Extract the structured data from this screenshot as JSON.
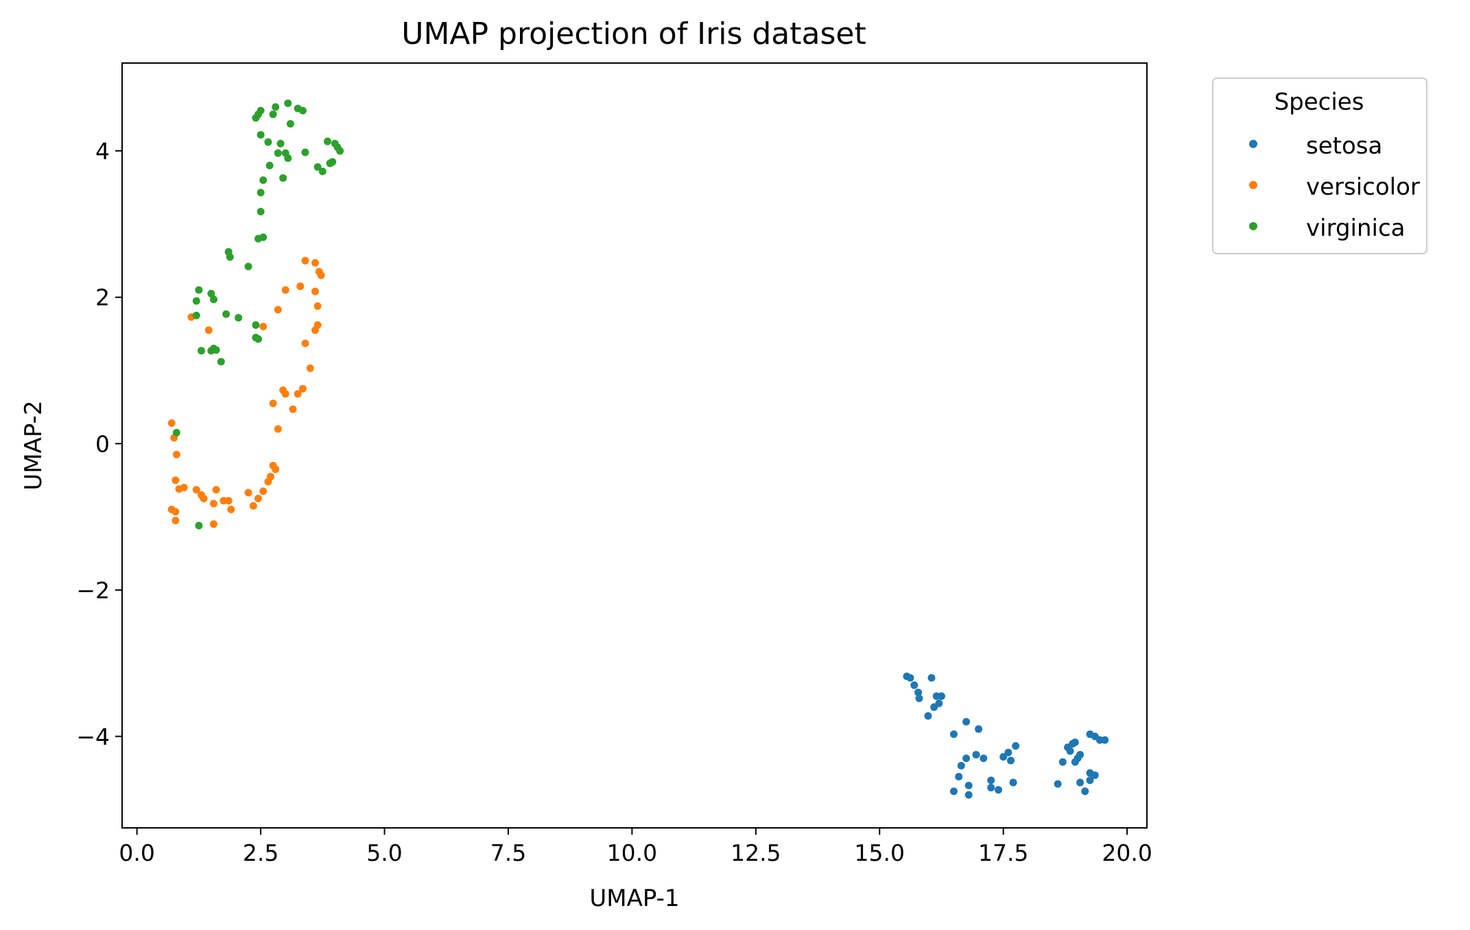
{
  "chart_data": {
    "type": "scatter",
    "title": "UMAP projection of Iris dataset",
    "xlabel": "UMAP-1",
    "ylabel": "UMAP-2",
    "xlim": [
      -0.3,
      20.4
    ],
    "ylim": [
      -5.25,
      5.2
    ],
    "xticks": [
      0.0,
      2.5,
      5.0,
      7.5,
      10.0,
      12.5,
      15.0,
      17.5,
      20.0
    ],
    "xtick_labels": [
      "0.0",
      "2.5",
      "5.0",
      "7.5",
      "10.0",
      "12.5",
      "15.0",
      "17.5",
      "20.0"
    ],
    "yticks": [
      -4,
      -2,
      0,
      2,
      4
    ],
    "ytick_labels": [
      "−4",
      "−2",
      "0",
      "2",
      "4"
    ],
    "grid": false,
    "legend": {
      "title": "Species",
      "placement": "outside-top-right"
    },
    "series": [
      {
        "name": "setosa",
        "color": "#1f77b4",
        "points": [
          [
            15.55,
            -3.18
          ],
          [
            15.62,
            -3.2
          ],
          [
            15.7,
            -3.3
          ],
          [
            15.78,
            -3.4
          ],
          [
            15.8,
            -3.48
          ],
          [
            16.05,
            -3.2
          ],
          [
            16.15,
            -3.45
          ],
          [
            16.25,
            -3.45
          ],
          [
            16.2,
            -3.55
          ],
          [
            16.1,
            -3.6
          ],
          [
            15.98,
            -3.72
          ],
          [
            16.5,
            -3.97
          ],
          [
            16.75,
            -3.8
          ],
          [
            17.0,
            -3.9
          ],
          [
            17.75,
            -4.13
          ],
          [
            17.6,
            -4.22
          ],
          [
            17.5,
            -4.28
          ],
          [
            17.65,
            -4.33
          ],
          [
            16.75,
            -4.3
          ],
          [
            16.95,
            -4.25
          ],
          [
            17.1,
            -4.3
          ],
          [
            16.65,
            -4.4
          ],
          [
            16.6,
            -4.55
          ],
          [
            16.8,
            -4.67
          ],
          [
            16.5,
            -4.75
          ],
          [
            16.8,
            -4.8
          ],
          [
            17.25,
            -4.6
          ],
          [
            17.25,
            -4.7
          ],
          [
            17.4,
            -4.73
          ],
          [
            17.7,
            -4.63
          ],
          [
            18.6,
            -4.65
          ],
          [
            18.7,
            -4.35
          ],
          [
            18.8,
            -4.15
          ],
          [
            18.85,
            -4.2
          ],
          [
            18.9,
            -4.1
          ],
          [
            18.95,
            -4.08
          ],
          [
            19.0,
            -4.3
          ],
          [
            19.05,
            -4.25
          ],
          [
            19.25,
            -3.97
          ],
          [
            19.35,
            -4.0
          ],
          [
            19.45,
            -4.05
          ],
          [
            19.55,
            -4.05
          ],
          [
            19.25,
            -4.5
          ],
          [
            19.35,
            -4.53
          ],
          [
            19.25,
            -4.6
          ],
          [
            19.05,
            -4.63
          ],
          [
            19.15,
            -4.75
          ],
          [
            18.95,
            -4.35
          ]
        ]
      },
      {
        "name": "versicolor",
        "color": "#ff7f0e",
        "points": [
          [
            0.7,
            0.28
          ],
          [
            0.75,
            0.08
          ],
          [
            0.8,
            -0.15
          ],
          [
            0.78,
            -0.5
          ],
          [
            0.85,
            -0.62
          ],
          [
            0.95,
            -0.6
          ],
          [
            0.7,
            -0.9
          ],
          [
            0.78,
            -0.93
          ],
          [
            0.78,
            -1.05
          ],
          [
            1.2,
            -0.63
          ],
          [
            1.3,
            -0.7
          ],
          [
            1.35,
            -0.75
          ],
          [
            1.55,
            -0.82
          ],
          [
            1.6,
            -0.63
          ],
          [
            1.55,
            -1.1
          ],
          [
            1.75,
            -0.78
          ],
          [
            1.85,
            -0.78
          ],
          [
            1.9,
            -0.9
          ],
          [
            2.25,
            -0.67
          ],
          [
            2.35,
            -0.85
          ],
          [
            2.45,
            -0.75
          ],
          [
            2.55,
            -0.65
          ],
          [
            2.65,
            -0.52
          ],
          [
            2.7,
            -0.45
          ],
          [
            2.75,
            -0.3
          ],
          [
            2.8,
            -0.35
          ],
          [
            2.85,
            0.2
          ],
          [
            2.75,
            0.55
          ],
          [
            2.95,
            0.73
          ],
          [
            3.0,
            0.68
          ],
          [
            3.15,
            0.47
          ],
          [
            3.25,
            0.68
          ],
          [
            3.35,
            0.75
          ],
          [
            3.5,
            1.03
          ],
          [
            3.4,
            1.37
          ],
          [
            3.6,
            1.55
          ],
          [
            3.65,
            1.62
          ],
          [
            3.65,
            1.88
          ],
          [
            3.6,
            2.08
          ],
          [
            3.3,
            2.15
          ],
          [
            3.0,
            2.1
          ],
          [
            2.85,
            1.83
          ],
          [
            3.4,
            2.5
          ],
          [
            3.6,
            2.47
          ],
          [
            3.68,
            2.35
          ],
          [
            3.72,
            2.3
          ],
          [
            1.1,
            1.73
          ],
          [
            1.45,
            1.55
          ],
          [
            2.55,
            1.6
          ]
        ]
      },
      {
        "name": "virginica",
        "color": "#2ca02c",
        "points": [
          [
            0.8,
            0.15
          ],
          [
            1.25,
            -1.12
          ],
          [
            1.25,
            2.1
          ],
          [
            1.2,
            1.95
          ],
          [
            1.2,
            1.75
          ],
          [
            1.3,
            1.27
          ],
          [
            1.5,
            2.05
          ],
          [
            1.55,
            1.97
          ],
          [
            1.5,
            1.27
          ],
          [
            1.55,
            1.3
          ],
          [
            1.6,
            1.28
          ],
          [
            1.7,
            1.12
          ],
          [
            1.8,
            1.77
          ],
          [
            2.05,
            1.72
          ],
          [
            1.85,
            2.62
          ],
          [
            1.88,
            2.55
          ],
          [
            2.25,
            2.42
          ],
          [
            2.4,
            1.62
          ],
          [
            2.4,
            1.45
          ],
          [
            2.45,
            1.43
          ],
          [
            2.45,
            2.8
          ],
          [
            2.55,
            2.82
          ],
          [
            2.5,
            3.17
          ],
          [
            2.5,
            3.43
          ],
          [
            2.55,
            3.6
          ],
          [
            2.68,
            3.8
          ],
          [
            2.95,
            3.63
          ],
          [
            2.85,
            3.97
          ],
          [
            3.05,
            3.9
          ],
          [
            3.0,
            3.97
          ],
          [
            2.65,
            4.12
          ],
          [
            2.9,
            4.1
          ],
          [
            3.4,
            3.98
          ],
          [
            3.65,
            3.78
          ],
          [
            3.75,
            3.72
          ],
          [
            3.9,
            3.83
          ],
          [
            3.95,
            3.85
          ],
          [
            3.85,
            4.13
          ],
          [
            4.0,
            4.1
          ],
          [
            4.05,
            4.05
          ],
          [
            4.1,
            4.0
          ],
          [
            2.5,
            4.22
          ],
          [
            2.4,
            4.45
          ],
          [
            2.45,
            4.5
          ],
          [
            2.5,
            4.55
          ],
          [
            2.75,
            4.5
          ],
          [
            2.8,
            4.6
          ],
          [
            3.05,
            4.65
          ],
          [
            3.1,
            4.37
          ],
          [
            3.25,
            4.58
          ],
          [
            3.35,
            4.55
          ]
        ]
      }
    ]
  }
}
